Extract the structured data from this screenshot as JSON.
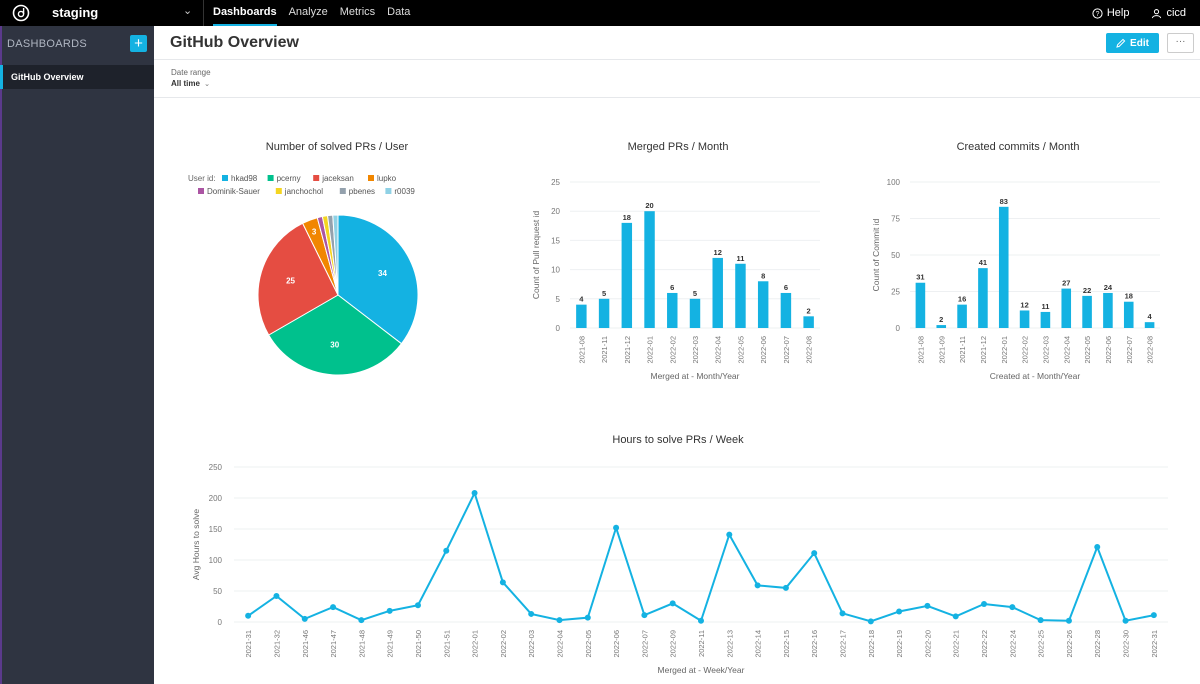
{
  "topbar": {
    "workspace": "staging",
    "nav": [
      "Dashboards",
      "Analyze",
      "Metrics",
      "Data"
    ],
    "help": "Help",
    "user": "cicd"
  },
  "sidebar": {
    "heading": "DASHBOARDS",
    "add_label": "+",
    "items": [
      {
        "label": "GitHub Overview"
      }
    ]
  },
  "header": {
    "title": "GitHub Overview",
    "edit_label": "Edit",
    "more_label": "···"
  },
  "filter": {
    "label": "Date range",
    "value": "All time"
  },
  "colors": {
    "accent": "#14b2e2",
    "sidebar": "#2f3441",
    "topbar": "#000000"
  },
  "chart_data": [
    {
      "type": "pie",
      "title": "Number of solved PRs / User",
      "legend_title": "User id:",
      "legend_position": "top",
      "slices": [
        {
          "name": "hkad98",
          "value": 34,
          "color": "#14b2e2"
        },
        {
          "name": "pcerny",
          "value": 30,
          "color": "#00c18d"
        },
        {
          "name": "jaceksan",
          "value": 25,
          "color": "#e54d42"
        },
        {
          "name": "lupko",
          "value": 3,
          "color": "#f18600"
        },
        {
          "name": "Dominik-Sauer",
          "value": 1,
          "color": "#ab55a3"
        },
        {
          "name": "janchochol",
          "value": 1,
          "color": "#f4d521"
        },
        {
          "name": "pbenes",
          "value": 1,
          "color": "#94a1ad"
        },
        {
          "name": "r0039",
          "value": 1,
          "color": "#8fd1e5"
        }
      ]
    },
    {
      "type": "bar",
      "title": "Merged PRs / Month",
      "xlabel": "Merged at - Month/Year",
      "ylabel": "Count of Pull request id",
      "ylim": [
        0,
        25
      ],
      "yticks": [
        0,
        5,
        10,
        15,
        20,
        25
      ],
      "categories": [
        "2021-08",
        "2021-11",
        "2021-12",
        "2022-01",
        "2022-02",
        "2022-03",
        "2022-04",
        "2022-05",
        "2022-06",
        "2022-07",
        "2022-08"
      ],
      "values": [
        4,
        5,
        18,
        20,
        6,
        5,
        12,
        11,
        8,
        6,
        2
      ]
    },
    {
      "type": "bar",
      "title": "Created commits / Month",
      "xlabel": "Created at - Month/Year",
      "ylabel": "Count of Commit id",
      "ylim": [
        0,
        100
      ],
      "yticks": [
        0,
        25,
        50,
        75,
        100
      ],
      "categories": [
        "2021-08",
        "2021-09",
        "2021-11",
        "2021-12",
        "2022-01",
        "2022-02",
        "2022-03",
        "2022-04",
        "2022-05",
        "2022-06",
        "2022-07",
        "2022-08"
      ],
      "values": [
        31,
        2,
        16,
        41,
        83,
        12,
        11,
        27,
        22,
        24,
        18,
        4
      ]
    },
    {
      "type": "line",
      "title": "Hours to solve PRs / Week",
      "xlabel": "Merged at - Week/Year",
      "ylabel": "Avg Hours to solve",
      "ylim": [
        0,
        250
      ],
      "yticks": [
        0,
        50,
        100,
        150,
        200,
        250
      ],
      "categories": [
        "2021-31",
        "2021-32",
        "2021-46",
        "2021-47",
        "2021-48",
        "2021-49",
        "2021-50",
        "2021-51",
        "2022-01",
        "2022-02",
        "2022-03",
        "2022-04",
        "2022-05",
        "2022-06",
        "2022-07",
        "2022-09",
        "2022-11",
        "2022-13",
        "2022-14",
        "2022-15",
        "2022-16",
        "2022-17",
        "2022-18",
        "2022-19",
        "2022-20",
        "2022-21",
        "2022-22",
        "2022-24",
        "2022-25",
        "2022-26",
        "2022-28",
        "2022-30",
        "2022-31"
      ],
      "values": [
        10,
        42,
        5,
        24,
        3,
        18,
        27,
        115,
        208,
        64,
        13,
        3,
        7,
        152,
        11,
        30,
        2,
        141,
        59,
        55,
        111,
        14,
        1,
        17,
        26,
        9,
        29,
        24,
        3,
        2,
        121,
        2,
        11
      ]
    }
  ]
}
